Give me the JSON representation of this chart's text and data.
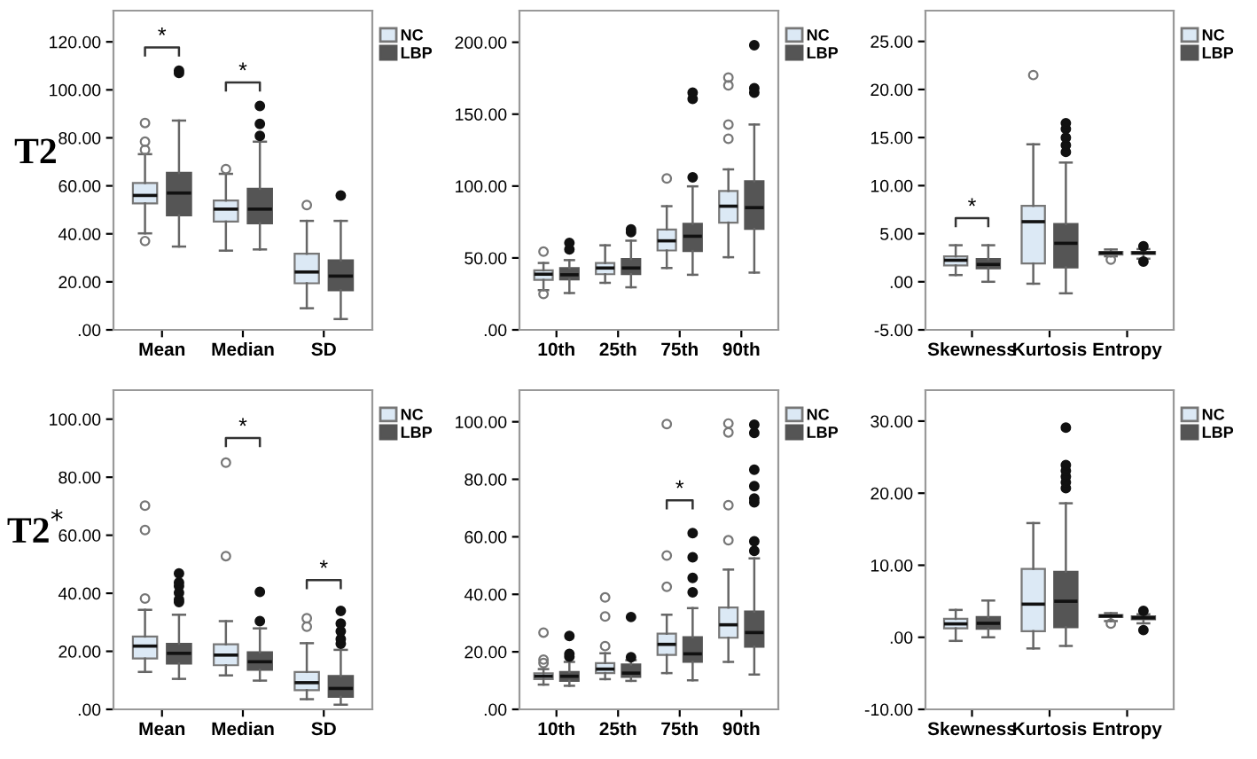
{
  "chart_data": [
    {
      "type": "box",
      "ylabel": "T2",
      "categories": [
        "Mean",
        "Median",
        "SD"
      ],
      "legend": "top right",
      "ylim": [
        0,
        133
      ],
      "yticks": [
        {
          "value": 0,
          "label": ".00"
        },
        {
          "value": 20,
          "label": "20.00"
        },
        {
          "value": 40,
          "label": "40.00"
        },
        {
          "value": 60,
          "label": "60.00"
        },
        {
          "value": 80,
          "label": "80.00"
        },
        {
          "value": 100,
          "label": "100.00"
        },
        {
          "value": 120,
          "label": "120.00"
        }
      ],
      "series": [
        {
          "name": "NC",
          "color": "#dce9f5",
          "boxes": [
            {
              "low": 40.2,
              "q1": 52.7,
              "median": 56,
              "q3": 61.2,
              "high": 73.2,
              "outliers": [
                37,
                75,
                78.4,
                86.2
              ]
            },
            {
              "low": 33,
              "q1": 45.1,
              "median": 50.3,
              "q3": 53.9,
              "high": 65,
              "outliers": [
                67
              ]
            },
            {
              "low": 9,
              "q1": 19.4,
              "median": 24.1,
              "q3": 31.7,
              "high": 45.4,
              "outliers": [
                52
              ]
            }
          ]
        },
        {
          "name": "LBP",
          "color": "#555555",
          "boxes": [
            {
              "low": 34.7,
              "q1": 47.7,
              "median": 57,
              "q3": 65.4,
              "high": 87.2,
              "outliers": [
                107,
                108
              ]
            },
            {
              "low": 33.5,
              "q1": 44.4,
              "median": 50.3,
              "q3": 58.8,
              "high": 78.4,
              "outliers": [
                80.8,
                85.8,
                93.3
              ]
            },
            {
              "low": 4.5,
              "q1": 16.5,
              "median": 22.4,
              "q3": 29,
              "high": 45.4,
              "outliers": [
                56
              ]
            }
          ]
        }
      ],
      "annotations": [
        "*",
        "*"
      ]
    },
    {
      "type": "box",
      "categories": [
        "10th",
        "25th",
        "75th",
        "90th"
      ],
      "legend": "top right",
      "ylim": [
        0,
        222
      ],
      "yticks": [
        {
          "value": 0,
          "label": ".00"
        },
        {
          "value": 50,
          "label": "50.00"
        },
        {
          "value": 100,
          "label": "100.00"
        },
        {
          "value": 150,
          "label": "150.00"
        },
        {
          "value": 200,
          "label": "200.00"
        }
      ],
      "series": [
        {
          "name": "NC",
          "color": "#dce9f5",
          "boxes": [
            {
              "low": 27.6,
              "q1": 34.7,
              "median": 38.7,
              "q3": 41.4,
              "high": 46.5,
              "outliers": [
                24.9,
                54.4
              ]
            },
            {
              "low": 32.7,
              "q1": 38.7,
              "median": 43,
              "q3": 46.5,
              "high": 58.8
            },
            {
              "low": 43,
              "q1": 55.2,
              "median": 61.9,
              "q3": 69.8,
              "high": 86,
              "outliers": [
                105.3
              ]
            },
            {
              "low": 50.5,
              "q1": 74.6,
              "median": 86,
              "q3": 96.6,
              "high": 111.6,
              "outliers": [
                132.9,
                142.8,
                170,
                175.5
              ]
            }
          ]
        },
        {
          "name": "LBP",
          "color": "#555555",
          "boxes": [
            {
              "low": 25.6,
              "q1": 35.1,
              "median": 38.3,
              "q3": 43,
              "high": 48.5,
              "outliers": [
                56,
                60.4
              ]
            },
            {
              "low": 29.6,
              "q1": 38.7,
              "median": 43,
              "q3": 49.3,
              "high": 62,
              "outliers": [
                67.9,
                69.8
              ]
            },
            {
              "low": 38.3,
              "q1": 54.8,
              "median": 65.1,
              "q3": 73.8,
              "high": 99.8,
              "outliers": [
                106.1,
                160.6,
                164.9
              ]
            },
            {
              "low": 39.8,
              "q1": 70.2,
              "median": 85,
              "q3": 103.4,
              "high": 142.8,
              "outliers": [
                165,
                168,
                198
              ]
            }
          ]
        }
      ]
    },
    {
      "type": "box",
      "categories": [
        "Skewness",
        "Kurtosis",
        "Entropy"
      ],
      "legend": "top right",
      "ylim": [
        -5,
        28.2
      ],
      "yticks": [
        {
          "value": -5,
          "label": "-5.00"
        },
        {
          "value": 0,
          "label": ".00"
        },
        {
          "value": 5,
          "label": "5.00"
        },
        {
          "value": 10,
          "label": "10.00"
        },
        {
          "value": 15,
          "label": "15.00"
        },
        {
          "value": 20,
          "label": "20.00"
        },
        {
          "value": 25,
          "label": "25.00"
        }
      ],
      "series": [
        {
          "name": "NC",
          "color": "#dce9f5",
          "boxes": [
            {
              "low": 0.7,
              "q1": 1.7,
              "median": 2.24,
              "q3": 2.65,
              "high": 3.8
            },
            {
              "low": -0.2,
              "q1": 1.9,
              "median": 6.25,
              "q3": 7.9,
              "high": 14.3,
              "outliers": [
                21.5
              ]
            },
            {
              "low": 2.65,
              "q1": 2.83,
              "median": 3,
              "q3": 3.1,
              "high": 3.36,
              "outliers": [
                2.3
              ]
            }
          ]
        },
        {
          "name": "LBP",
          "color": "#555555",
          "boxes": [
            {
              "low": 0,
              "q1": 1.4,
              "median": 1.8,
              "q3": 2.36,
              "high": 3.8
            },
            {
              "low": -1.2,
              "q1": 1.5,
              "median": 4,
              "q3": 6,
              "high": 12.4,
              "outliers": [
                13.5,
                14.2,
                15,
                15.9,
                16.5
              ]
            },
            {
              "low": 2.4,
              "q1": 2.9,
              "median": 3,
              "q3": 3.1,
              "high": 3.4,
              "outliers": [
                2.1,
                3.7
              ]
            }
          ]
        }
      ],
      "annotations": [
        "*"
      ]
    },
    {
      "type": "box",
      "ylabel": "T2$^{*}$",
      "categories": [
        "Mean",
        "Median",
        "SD"
      ],
      "legend": "top right",
      "ylim": [
        0,
        110
      ],
      "yticks": [
        {
          "value": 0,
          "label": ".00"
        },
        {
          "value": 20,
          "label": "20.00"
        },
        {
          "value": 40,
          "label": "40.00"
        },
        {
          "value": 60,
          "label": "60.00"
        },
        {
          "value": 80,
          "label": "80.00"
        },
        {
          "value": 100,
          "label": "100.00"
        }
      ],
      "series": [
        {
          "name": "NC",
          "color": "#dce9f5",
          "boxes": [
            {
              "low": 12.9,
              "q1": 17.5,
              "median": 21.8,
              "q3": 25.1,
              "high": 34.3,
              "outliers": [
                38.2,
                61.8,
                70.2
              ]
            },
            {
              "low": 11.7,
              "q1": 15.2,
              "median": 18.7,
              "q3": 22.4,
              "high": 30.4,
              "outliers": [
                52.8,
                85
              ]
            },
            {
              "low": 3.5,
              "q1": 6.6,
              "median": 9.2,
              "q3": 12.9,
              "high": 22.8,
              "outliers": [
                28.5,
                31.4
              ]
            }
          ]
        },
        {
          "name": "LBP",
          "color": "#555555",
          "boxes": [
            {
              "low": 10.5,
              "q1": 15.8,
              "median": 19.3,
              "q3": 22.6,
              "high": 32.6,
              "outliers": [
                37,
                37.8,
                40.2,
                42.5,
                43.7,
                46.8
              ]
            },
            {
              "low": 9.9,
              "q1": 13.6,
              "median": 16.4,
              "q3": 19.7,
              "high": 27.9,
              "outliers": [
                30.4,
                40.5
              ]
            },
            {
              "low": 1.6,
              "q1": 4.3,
              "median": 7.2,
              "q3": 11.5,
              "high": 20.5,
              "outliers": [
                22.6,
                24.2,
                26.9,
                29.6,
                33.9
              ]
            }
          ]
        }
      ],
      "annotations": [
        "*",
        "*"
      ]
    },
    {
      "type": "box",
      "categories": [
        "10th",
        "25th",
        "75th",
        "90th"
      ],
      "legend": "top right",
      "ylim": [
        0,
        111
      ],
      "yticks": [
        {
          "value": 0,
          "label": ".00"
        },
        {
          "value": 20,
          "label": "20.00"
        },
        {
          "value": 40,
          "label": "40.00"
        },
        {
          "value": 60,
          "label": "60.00"
        },
        {
          "value": 80,
          "label": "80.00"
        },
        {
          "value": 100,
          "label": "100.00"
        }
      ],
      "series": [
        {
          "name": "NC",
          "color": "#dce9f5",
          "boxes": [
            {
              "low": 8.6,
              "q1": 10.5,
              "median": 11.5,
              "q3": 12.5,
              "high": 14,
              "outliers": [
                16.1,
                17.3,
                26.7
              ]
            },
            {
              "low": 10.5,
              "q1": 12.6,
              "median": 14,
              "q3": 16.1,
              "high": 19.5,
              "outliers": [
                22,
                32.3,
                38.9
              ]
            },
            {
              "low": 12.6,
              "q1": 18.9,
              "median": 22.6,
              "q3": 26.3,
              "high": 32.9,
              "outliers": [
                42.6,
                53.5,
                99.2
              ]
            },
            {
              "low": 16.5,
              "q1": 24.9,
              "median": 29.4,
              "q3": 35.4,
              "high": 48.6,
              "outliers": [
                58.8,
                71,
                96.3,
                99.4
              ]
            }
          ]
        },
        {
          "name": "LBP",
          "color": "#555555",
          "boxes": [
            {
              "low": 8.2,
              "q1": 9.9,
              "median": 11.5,
              "q3": 13,
              "high": 16.5,
              "outliers": [
                18.3,
                19.3,
                25.5
              ]
            },
            {
              "low": 9.9,
              "q1": 11.3,
              "median": 12.6,
              "q3": 15.6,
              "high": 17.1,
              "outliers": [
                18.1,
                32.1
              ]
            },
            {
              "low": 10.1,
              "q1": 16.5,
              "median": 19.3,
              "q3": 25.1,
              "high": 35.2,
              "outliers": [
                40.7,
                45.7,
                52.9,
                61.3
              ]
            },
            {
              "low": 12.1,
              "q1": 21.8,
              "median": 26.7,
              "q3": 34,
              "high": 52.5,
              "outliers": [
                55.1,
                58.4,
                72,
                73.3,
                77.6,
                83.3,
                96.1,
                99
              ]
            }
          ]
        }
      ],
      "annotations": [
        "*"
      ]
    },
    {
      "type": "box",
      "categories": [
        "Skewness",
        "Kurtosis",
        "Entropy"
      ],
      "legend": "top right",
      "ylim": [
        -10,
        34.3
      ],
      "yticks": [
        {
          "value": -10,
          "label": "-10.00"
        },
        {
          "value": 0,
          "label": ".00"
        },
        {
          "value": 10,
          "label": "10.00"
        },
        {
          "value": 20,
          "label": "20.00"
        },
        {
          "value": 30,
          "label": "30.00"
        }
      ],
      "series": [
        {
          "name": "NC",
          "color": "#dce9f5",
          "boxes": [
            {
              "low": -0.5,
              "q1": 1.24,
              "median": 1.86,
              "q3": 2.56,
              "high": 3.8
            },
            {
              "low": -1.55,
              "q1": 0.85,
              "median": 4.6,
              "q3": 9.5,
              "high": 15.85
            },
            {
              "low": 2.25,
              "q1": 2.8,
              "median": 2.95,
              "q3": 3.1,
              "high": 3.35,
              "outliers": [
                1.9
              ]
            }
          ]
        },
        {
          "name": "LBP",
          "color": "#555555",
          "boxes": [
            {
              "low": 0,
              "q1": 1.17,
              "median": 1.94,
              "q3": 2.8,
              "high": 5.1
            },
            {
              "low": -1.2,
              "q1": 1.4,
              "median": 5,
              "q3": 9.1,
              "high": 18.6,
              "outliers": [
                20.7,
                21.5,
                22.3,
                23.1,
                23.9,
                29.1
              ]
            },
            {
              "low": 1.94,
              "q1": 2.5,
              "median": 2.7,
              "q3": 2.9,
              "high": 3.2,
              "outliers": [
                1,
                3.65
              ]
            }
          ]
        }
      ]
    }
  ]
}
